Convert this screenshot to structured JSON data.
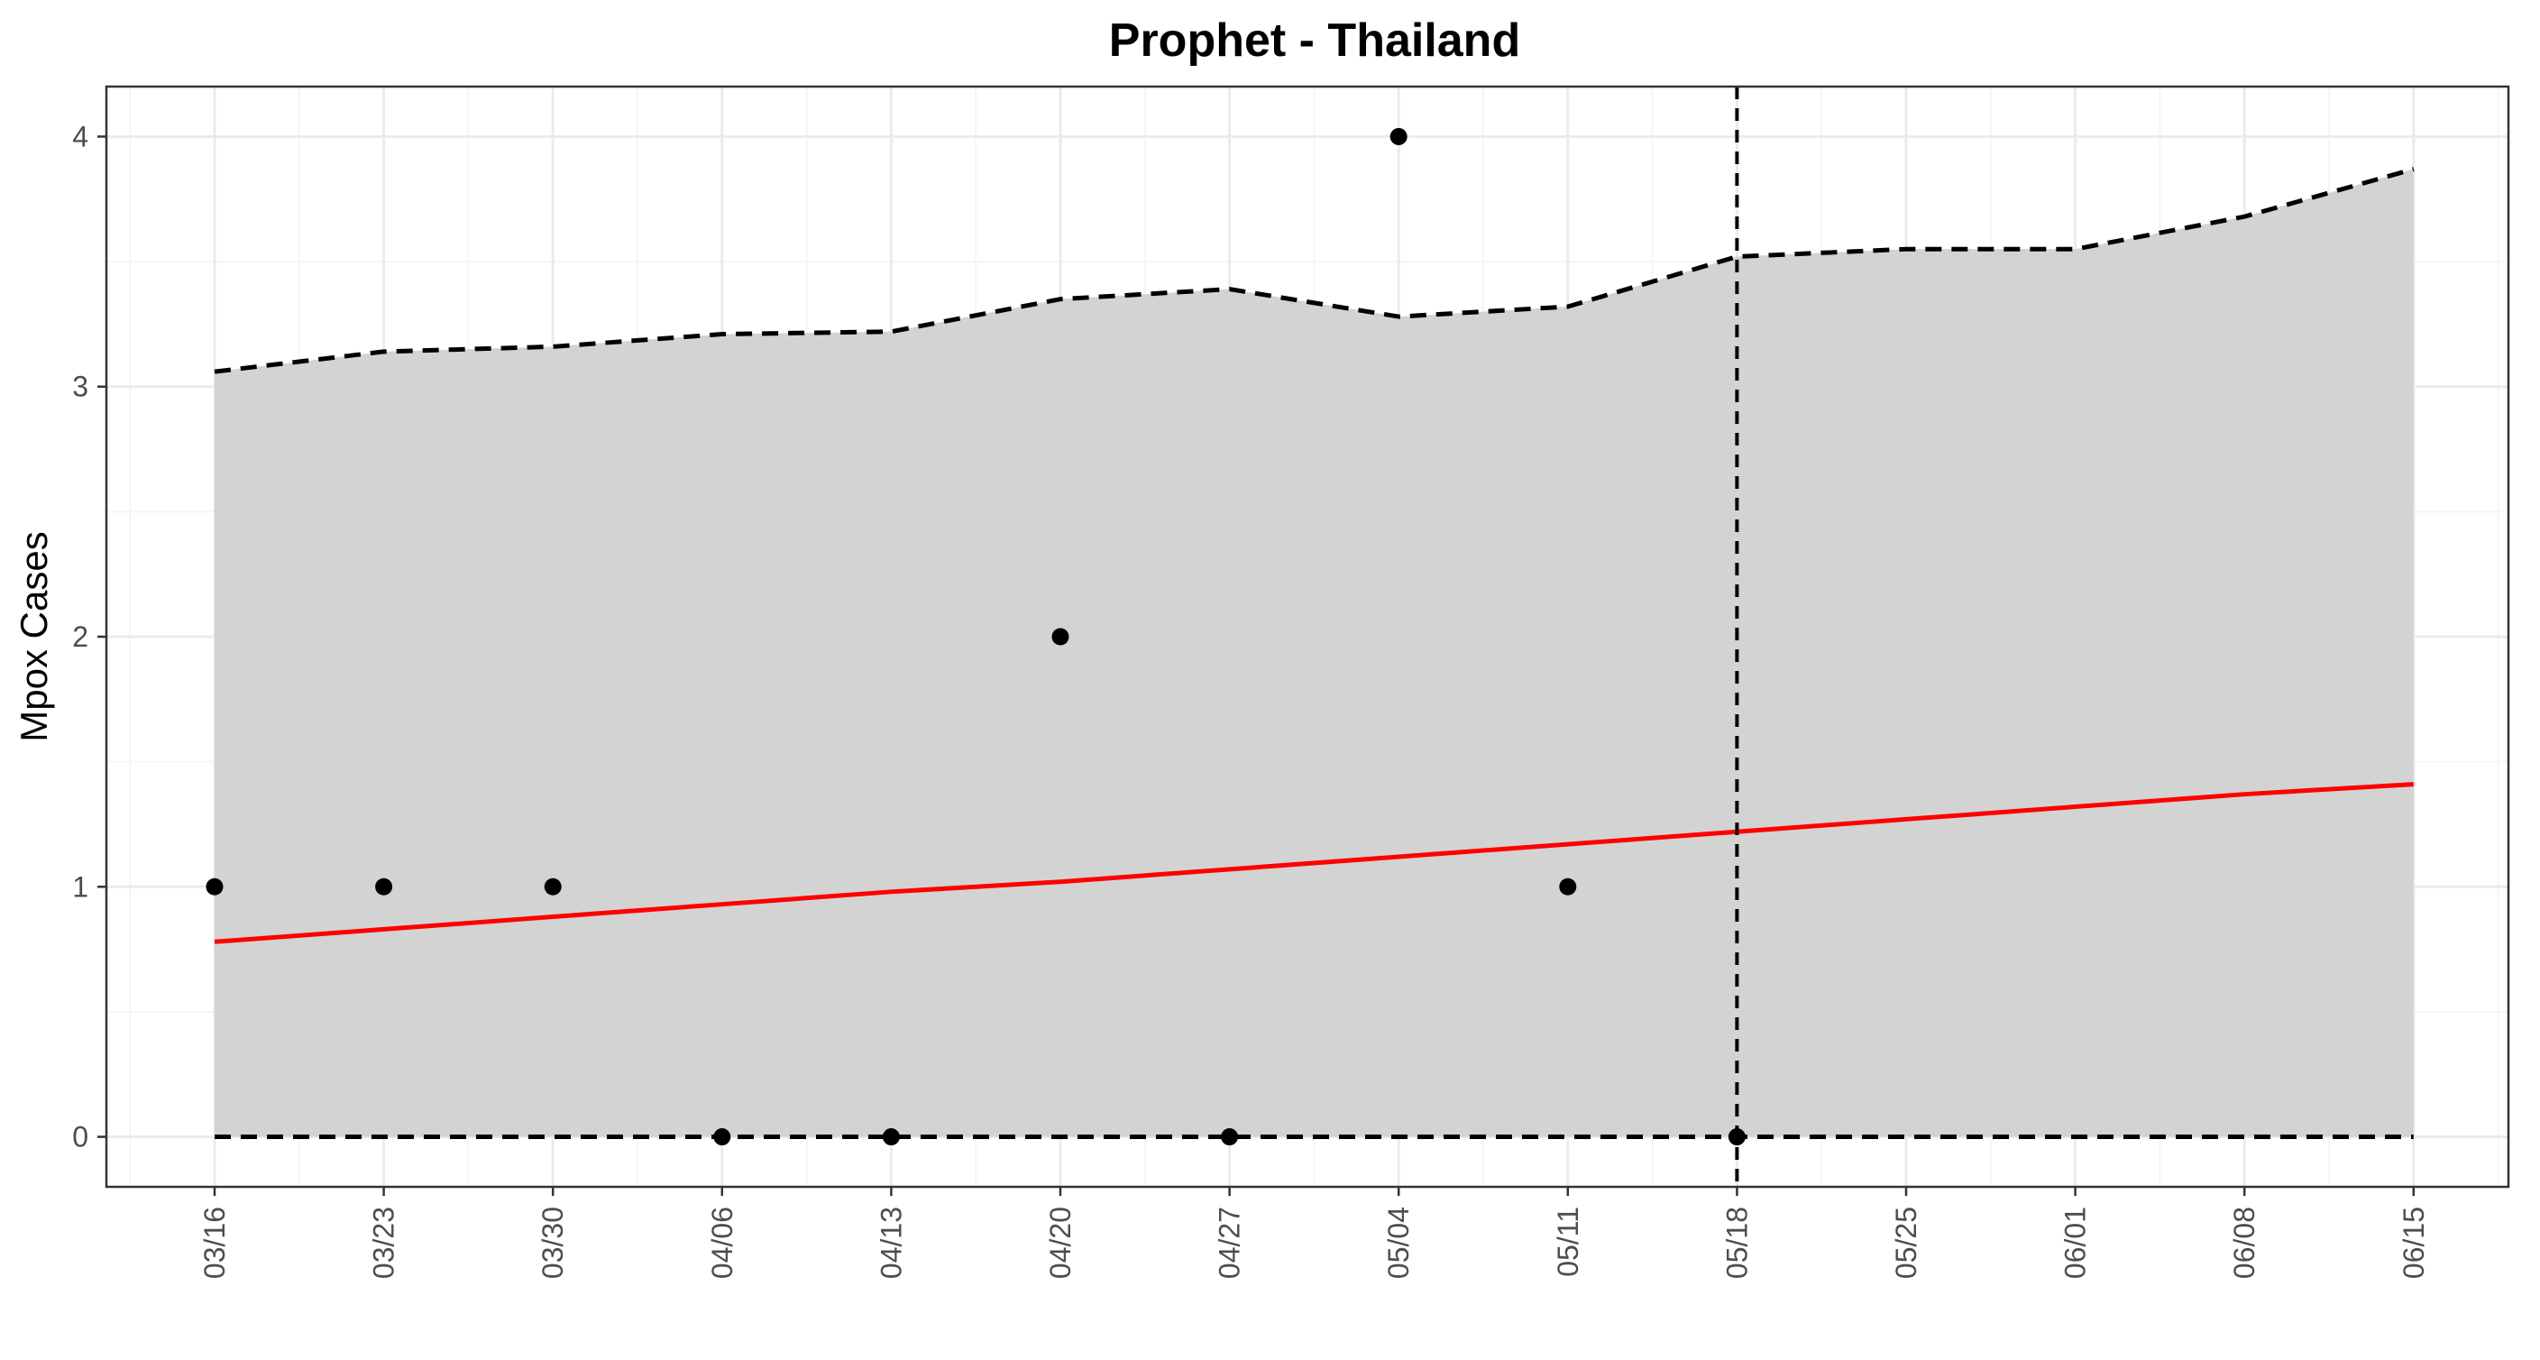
{
  "chart_data": {
    "type": "line",
    "title": "Prophet - Thailand",
    "xlabel": "",
    "ylabel": "Mpox Cases",
    "x_tick_labels": [
      "03/16",
      "03/23",
      "03/30",
      "04/06",
      "04/13",
      "04/20",
      "04/27",
      "05/04",
      "05/11",
      "05/18",
      "05/25",
      "06/01",
      "06/08",
      "06/15"
    ],
    "y_tick_labels": [
      "0",
      "1",
      "2",
      "3",
      "4"
    ],
    "ylim": [
      -0.2,
      4.2
    ],
    "grid": true,
    "cutoff_x": "05/18",
    "observed": {
      "x": [
        "03/16",
        "03/23",
        "03/30",
        "04/06",
        "04/13",
        "04/20",
        "04/27",
        "05/04",
        "05/11",
        "05/18"
      ],
      "y": [
        1,
        1,
        1,
        0,
        0,
        2,
        0,
        4,
        1,
        0
      ]
    },
    "forecast": {
      "x": [
        "03/16",
        "03/23",
        "03/30",
        "04/06",
        "04/13",
        "04/20",
        "04/27",
        "05/04",
        "05/11",
        "05/18",
        "05/25",
        "06/01",
        "06/08",
        "06/15"
      ],
      "yhat": [
        0.78,
        0.83,
        0.88,
        0.93,
        0.98,
        1.02,
        1.07,
        1.12,
        1.17,
        1.22,
        1.27,
        1.32,
        1.37,
        1.41
      ],
      "upper": [
        3.06,
        3.14,
        3.16,
        3.21,
        3.22,
        3.35,
        3.39,
        3.28,
        3.32,
        3.52,
        3.55,
        3.55,
        3.68,
        3.87
      ],
      "lower": [
        0,
        0,
        0,
        0,
        0,
        0,
        0,
        0,
        0,
        0,
        0,
        0,
        0,
        0
      ]
    },
    "colors": {
      "band": "#d3d3d3",
      "forecast_line": "#ff0000",
      "bounds": "#000000",
      "points": "#000000",
      "grid_major": "#ebebeb",
      "grid_minor": "#f5f5f5",
      "panel_border": "#333333",
      "tick_text": "#4d4d4d"
    }
  }
}
